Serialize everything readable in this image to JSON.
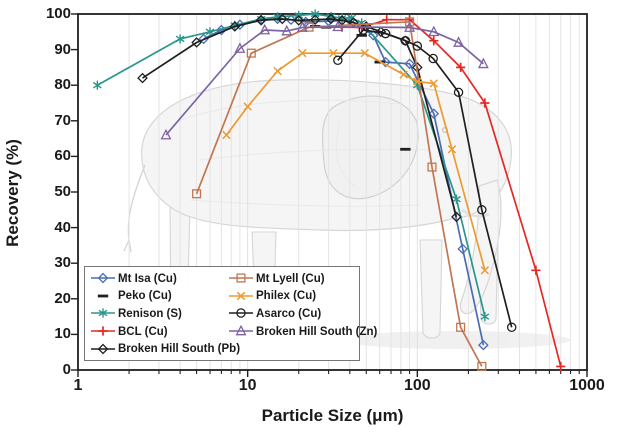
{
  "chart_data": {
    "type": "line",
    "title": "",
    "xlabel": "Particle Size (μm)",
    "ylabel": "Recovery (%)",
    "x_scale": "log",
    "xlim": [
      1,
      1000
    ],
    "ylim": [
      0,
      100
    ],
    "x_ticks": [
      1,
      10,
      100,
      1000
    ],
    "y_ticks": [
      0,
      10,
      20,
      30,
      40,
      50,
      60,
      70,
      80,
      90,
      100
    ],
    "grid": "vertical log minor gridlines, light gray",
    "legend_position": "bottom-left inside plot, two columns",
    "background_watermark": "pencil sketch of an elephant behind the curves",
    "series": [
      {
        "name": "Mt Isa (Cu)",
        "marker": "diamond",
        "color": "#4a6cb3",
        "line": true,
        "points": [
          [
            5.5,
            93
          ],
          [
            7,
            95.5
          ],
          [
            9,
            97
          ],
          [
            12,
            98.2
          ],
          [
            15,
            98.6
          ],
          [
            18,
            98.4
          ],
          [
            22,
            97.8
          ],
          [
            30,
            98
          ],
          [
            40,
            98.2
          ],
          [
            55,
            94
          ],
          [
            65,
            86.5
          ],
          [
            90,
            86
          ],
          [
            125,
            72
          ],
          [
            185,
            34
          ],
          [
            245,
            7
          ]
        ]
      },
      {
        "name": "Peko (Cu)",
        "marker": "dash",
        "color": "#1f1f1f",
        "line": false,
        "points": [
          [
            25,
            96.5
          ],
          [
            29,
            96.3
          ],
          [
            33,
            96.5
          ],
          [
            47,
            94
          ],
          [
            60,
            86.5
          ],
          [
            85,
            62
          ]
        ]
      },
      {
        "name": "Renison (S)",
        "marker": "asterisk",
        "color": "#2a968c",
        "line": true,
        "points": [
          [
            1.3,
            80
          ],
          [
            4,
            93
          ],
          [
            6,
            95
          ],
          [
            8.4,
            96.8
          ],
          [
            12,
            98.6
          ],
          [
            15,
            99.2
          ],
          [
            20,
            99.6
          ],
          [
            25,
            100
          ],
          [
            31,
            99.3
          ],
          [
            36,
            98.8
          ],
          [
            41,
            98.9
          ],
          [
            47,
            97.5
          ],
          [
            100,
            80
          ],
          [
            170,
            48
          ],
          [
            250,
            15
          ]
        ]
      },
      {
        "name": "BCL (Cu)",
        "marker": "plus",
        "color": "#e62824",
        "line": true,
        "points": [
          [
            36,
            96.3
          ],
          [
            47,
            96.2
          ],
          [
            66,
            98.4
          ],
          [
            90,
            98.4
          ],
          [
            125,
            92.5
          ],
          [
            180,
            85
          ],
          [
            250,
            75
          ],
          [
            500,
            28
          ],
          [
            700,
            1
          ]
        ]
      },
      {
        "name": "Broken Hill South (Pb)",
        "marker": "diamond",
        "color": "#1f1f1f",
        "line": true,
        "points": [
          [
            2.4,
            82
          ],
          [
            5,
            92
          ],
          [
            8.4,
            96.5
          ],
          [
            12,
            98.3
          ],
          [
            16,
            98.6
          ],
          [
            20,
            98.2
          ],
          [
            25,
            98.4
          ],
          [
            31,
            98.6
          ],
          [
            36,
            98.2
          ],
          [
            42,
            97.6
          ],
          [
            50,
            96.5
          ],
          [
            61,
            95
          ],
          [
            85,
            92.5
          ],
          [
            100,
            85
          ],
          [
            170,
            43
          ]
        ]
      },
      {
        "name": "Mt Lyell (Cu)",
        "marker": "square",
        "color": "#c17652",
        "line": true,
        "points": [
          [
            5,
            49.5
          ],
          [
            10.5,
            89
          ],
          [
            23,
            96.3
          ],
          [
            90,
            97.8
          ],
          [
            122,
            57
          ],
          [
            180,
            12
          ],
          [
            240,
            1
          ]
        ]
      },
      {
        "name": "Philex (Cu)",
        "marker": "x",
        "color": "#ec9b2f",
        "line": true,
        "points": [
          [
            7.5,
            66
          ],
          [
            10,
            74
          ],
          [
            15,
            84
          ],
          [
            21,
            89
          ],
          [
            32,
            89
          ],
          [
            49,
            89
          ],
          [
            83,
            83
          ],
          [
            100,
            81
          ],
          [
            125,
            80.5
          ],
          [
            160,
            62
          ],
          [
            250,
            28
          ]
        ]
      },
      {
        "name": "Asarco (Cu)",
        "marker": "circle",
        "color": "#1f1f1f",
        "line": true,
        "points": [
          [
            34,
            87
          ],
          [
            48,
            95.5
          ],
          [
            65,
            94.5
          ],
          [
            85,
            92.5
          ],
          [
            100,
            91
          ],
          [
            124,
            87.5
          ],
          [
            175,
            78
          ],
          [
            240,
            45
          ],
          [
            360,
            12
          ]
        ]
      },
      {
        "name": "Broken Hill South (Zn)",
        "marker": "triangle",
        "color": "#7c63a2",
        "line": true,
        "points": [
          [
            3.3,
            66
          ],
          [
            9,
            90.3
          ],
          [
            12.6,
            95.5
          ],
          [
            17,
            95.2
          ],
          [
            21,
            96.2
          ],
          [
            34,
            96.4
          ],
          [
            90,
            96.2
          ],
          [
            125,
            95
          ],
          [
            175,
            92
          ],
          [
            245,
            86
          ]
        ]
      }
    ],
    "legend_columns": [
      [
        0,
        1,
        2,
        3,
        4
      ],
      [
        5,
        6,
        7,
        8
      ]
    ]
  }
}
